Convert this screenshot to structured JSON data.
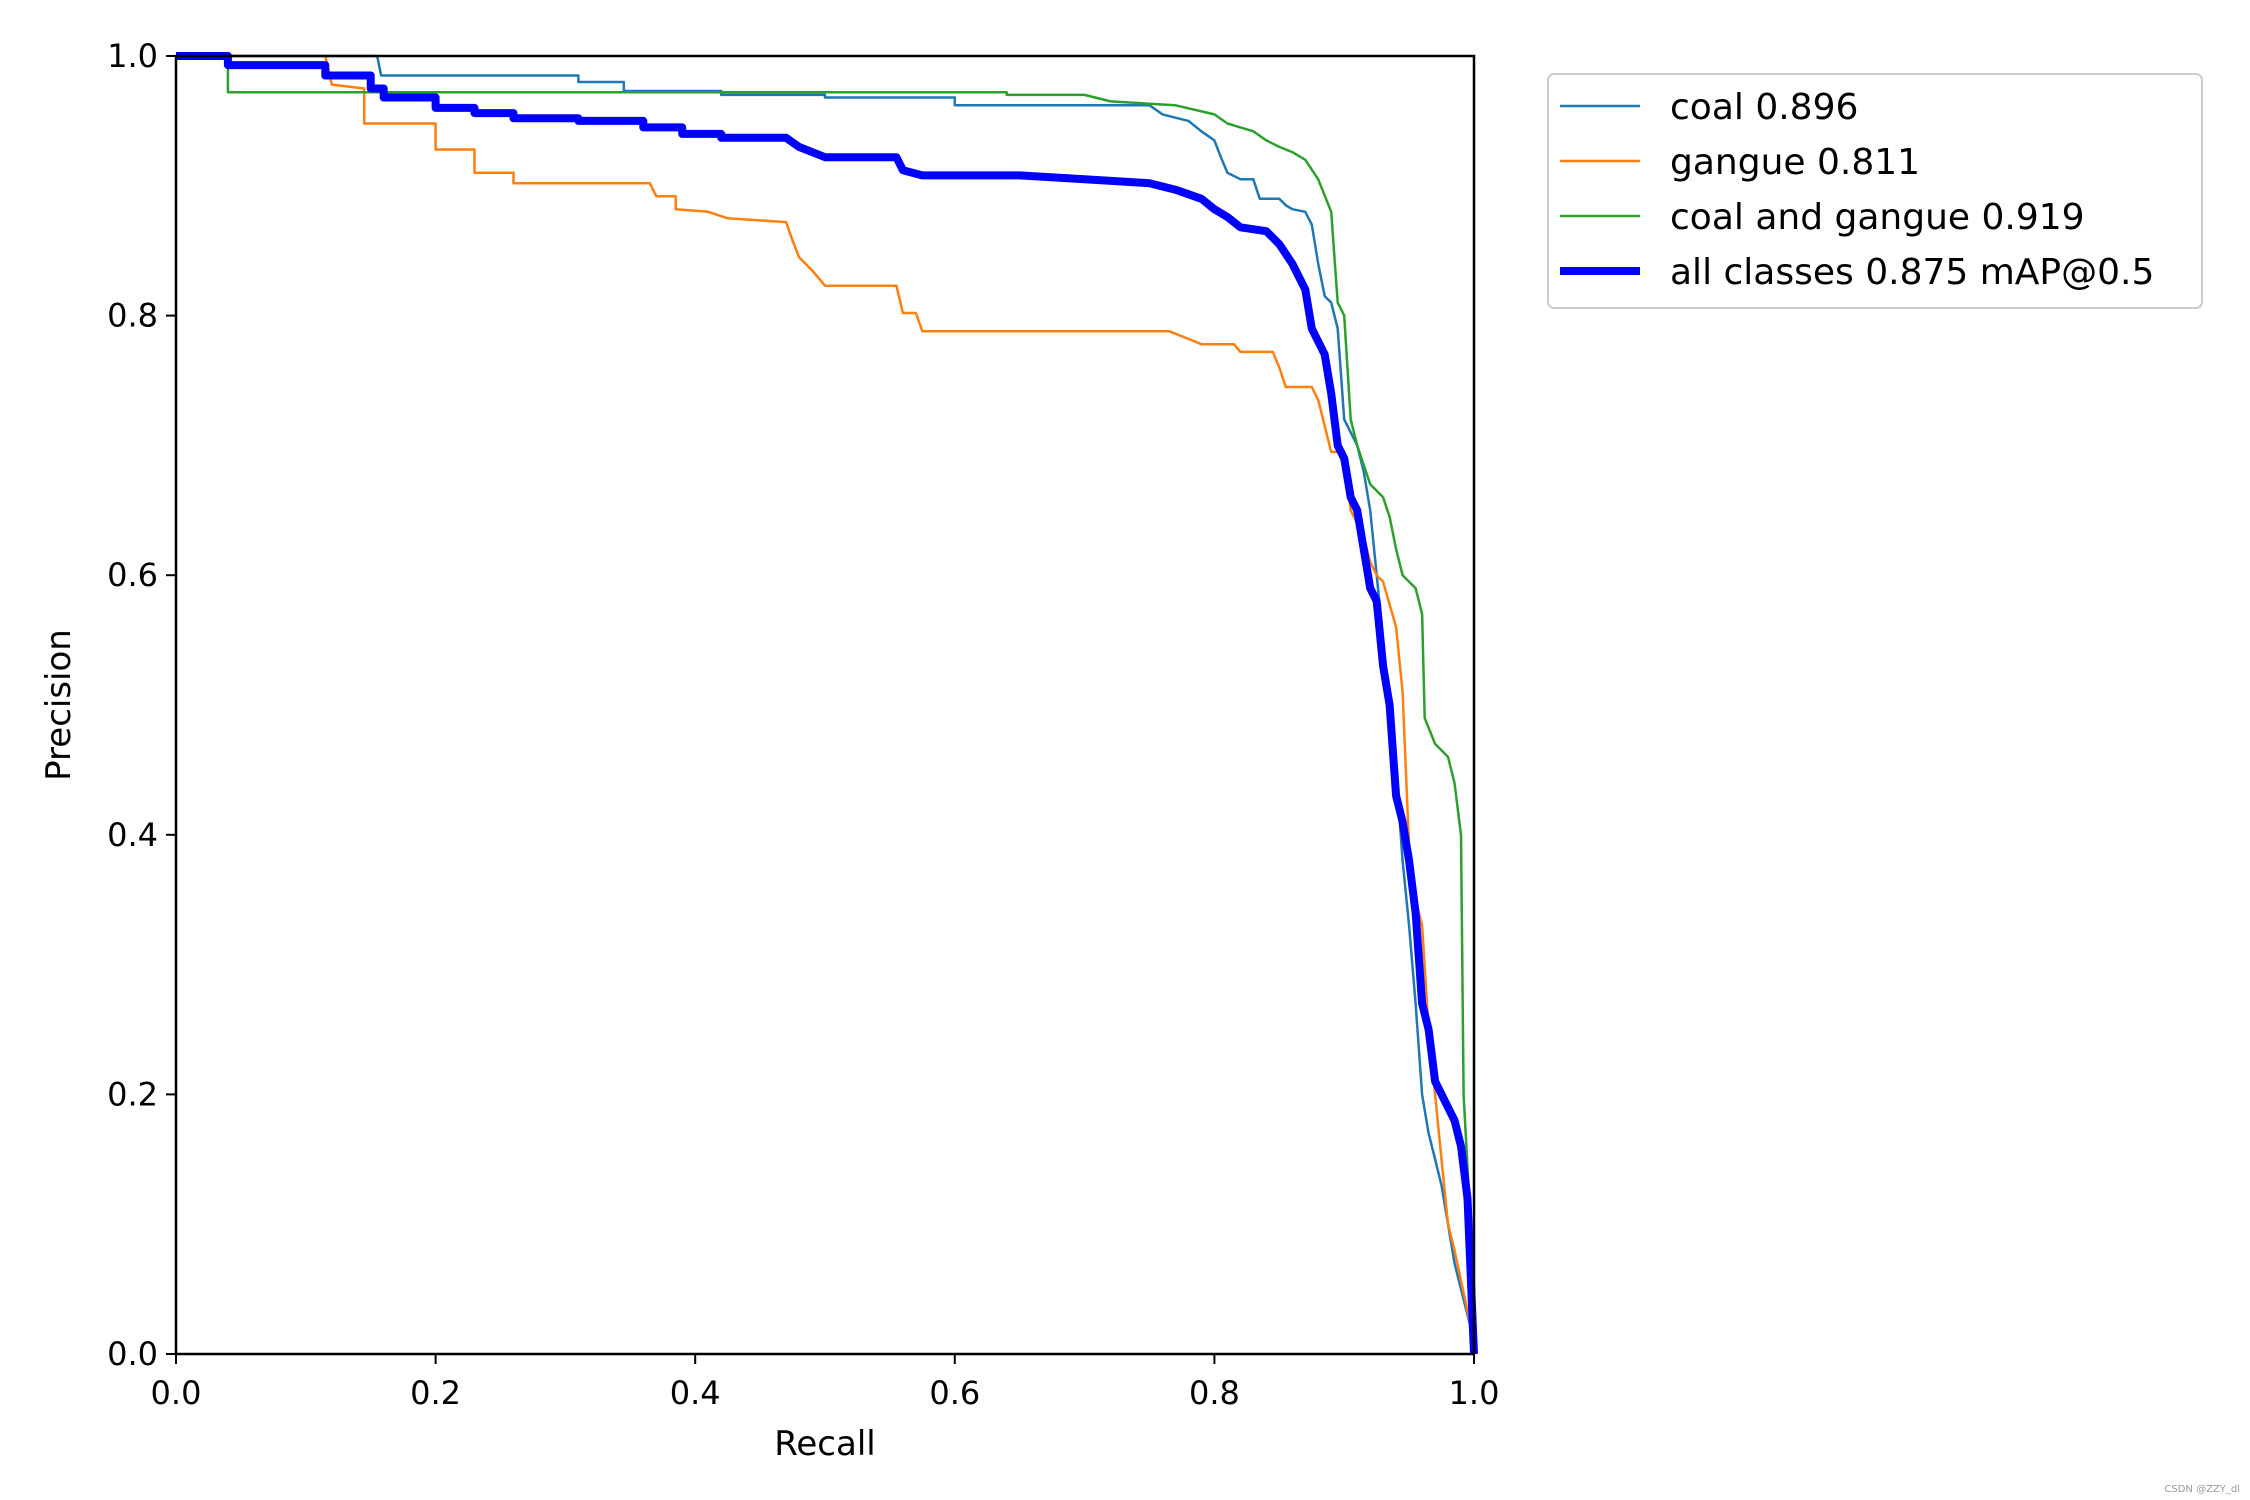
{
  "chart_data": {
    "type": "line",
    "title": "",
    "xlabel": "Recall",
    "ylabel": "Precision",
    "xlim": [
      0,
      1
    ],
    "ylim": [
      0,
      1
    ],
    "x_ticks": [
      "0.0",
      "0.2",
      "0.4",
      "0.6",
      "0.8",
      "1.0"
    ],
    "y_ticks": [
      "0.0",
      "0.2",
      "0.4",
      "0.6",
      "0.8",
      "1.0"
    ],
    "grid": false,
    "legend_position": "outside-top-right",
    "series": [
      {
        "name": "coal 0.896",
        "color": "#1f77b4",
        "width": "thin",
        "points": [
          [
            0,
            1.0
          ],
          [
            0.04,
            1.0
          ],
          [
            0.155,
            1.0
          ],
          [
            0.158,
            0.985
          ],
          [
            0.31,
            0.985
          ],
          [
            0.31,
            0.98
          ],
          [
            0.345,
            0.98
          ],
          [
            0.345,
            0.973
          ],
          [
            0.42,
            0.973
          ],
          [
            0.42,
            0.97
          ],
          [
            0.5,
            0.97
          ],
          [
            0.5,
            0.968
          ],
          [
            0.6,
            0.968
          ],
          [
            0.6,
            0.962
          ],
          [
            0.75,
            0.962
          ],
          [
            0.76,
            0.955
          ],
          [
            0.78,
            0.95
          ],
          [
            0.79,
            0.942
          ],
          [
            0.8,
            0.935
          ],
          [
            0.805,
            0.922
          ],
          [
            0.81,
            0.91
          ],
          [
            0.82,
            0.905
          ],
          [
            0.83,
            0.905
          ],
          [
            0.835,
            0.89
          ],
          [
            0.85,
            0.89
          ],
          [
            0.855,
            0.885
          ],
          [
            0.86,
            0.882
          ],
          [
            0.87,
            0.88
          ],
          [
            0.875,
            0.87
          ],
          [
            0.88,
            0.84
          ],
          [
            0.885,
            0.815
          ],
          [
            0.89,
            0.81
          ],
          [
            0.895,
            0.79
          ],
          [
            0.9,
            0.72
          ],
          [
            0.905,
            0.71
          ],
          [
            0.91,
            0.7
          ],
          [
            0.915,
            0.68
          ],
          [
            0.92,
            0.65
          ],
          [
            0.925,
            0.6
          ],
          [
            0.93,
            0.55
          ],
          [
            0.935,
            0.5
          ],
          [
            0.94,
            0.45
          ],
          [
            0.945,
            0.38
          ],
          [
            0.95,
            0.33
          ],
          [
            0.955,
            0.27
          ],
          [
            0.96,
            0.2
          ],
          [
            0.965,
            0.17
          ],
          [
            0.97,
            0.15
          ],
          [
            0.975,
            0.13
          ],
          [
            0.985,
            0.07
          ],
          [
            1.0,
            0.01
          ]
        ]
      },
      {
        "name": "gangue 0.811",
        "color": "#ff7f0e",
        "width": "thin",
        "points": [
          [
            0,
            1.0
          ],
          [
            0.115,
            1.0
          ],
          [
            0.12,
            0.978
          ],
          [
            0.145,
            0.975
          ],
          [
            0.145,
            0.948
          ],
          [
            0.2,
            0.948
          ],
          [
            0.2,
            0.928
          ],
          [
            0.23,
            0.928
          ],
          [
            0.23,
            0.91
          ],
          [
            0.26,
            0.91
          ],
          [
            0.26,
            0.902
          ],
          [
            0.365,
            0.902
          ],
          [
            0.37,
            0.892
          ],
          [
            0.385,
            0.892
          ],
          [
            0.385,
            0.882
          ],
          [
            0.41,
            0.88
          ],
          [
            0.425,
            0.875
          ],
          [
            0.47,
            0.872
          ],
          [
            0.475,
            0.858
          ],
          [
            0.48,
            0.845
          ],
          [
            0.49,
            0.835
          ],
          [
            0.5,
            0.823
          ],
          [
            0.555,
            0.823
          ],
          [
            0.56,
            0.802
          ],
          [
            0.57,
            0.802
          ],
          [
            0.575,
            0.788
          ],
          [
            0.765,
            0.788
          ],
          [
            0.775,
            0.784
          ],
          [
            0.79,
            0.778
          ],
          [
            0.815,
            0.778
          ],
          [
            0.82,
            0.772
          ],
          [
            0.845,
            0.772
          ],
          [
            0.85,
            0.76
          ],
          [
            0.855,
            0.745
          ],
          [
            0.875,
            0.745
          ],
          [
            0.88,
            0.735
          ],
          [
            0.885,
            0.715
          ],
          [
            0.89,
            0.695
          ],
          [
            0.9,
            0.695
          ],
          [
            0.905,
            0.65
          ],
          [
            0.915,
            0.63
          ],
          [
            0.92,
            0.61
          ],
          [
            0.925,
            0.6
          ],
          [
            0.93,
            0.595
          ],
          [
            0.94,
            0.56
          ],
          [
            0.945,
            0.51
          ],
          [
            0.95,
            0.39
          ],
          [
            0.955,
            0.35
          ],
          [
            0.96,
            0.33
          ],
          [
            0.965,
            0.25
          ],
          [
            0.97,
            0.2
          ],
          [
            0.975,
            0.15
          ],
          [
            0.98,
            0.1
          ],
          [
            0.985,
            0.08
          ],
          [
            1.0,
            0.01
          ]
        ]
      },
      {
        "name": "coal and gangue 0.919",
        "color": "#2ca02c",
        "width": "thin",
        "points": [
          [
            0,
            1.0
          ],
          [
            0.04,
            1.0
          ],
          [
            0.04,
            0.972
          ],
          [
            0.34,
            0.972
          ],
          [
            0.34,
            0.972
          ],
          [
            0.64,
            0.972
          ],
          [
            0.64,
            0.97
          ],
          [
            0.7,
            0.97
          ],
          [
            0.72,
            0.965
          ],
          [
            0.77,
            0.962
          ],
          [
            0.8,
            0.955
          ],
          [
            0.81,
            0.948
          ],
          [
            0.82,
            0.945
          ],
          [
            0.83,
            0.942
          ],
          [
            0.84,
            0.935
          ],
          [
            0.85,
            0.93
          ],
          [
            0.86,
            0.926
          ],
          [
            0.87,
            0.92
          ],
          [
            0.88,
            0.905
          ],
          [
            0.89,
            0.88
          ],
          [
            0.895,
            0.81
          ],
          [
            0.9,
            0.8
          ],
          [
            0.905,
            0.72
          ],
          [
            0.91,
            0.7
          ],
          [
            0.915,
            0.685
          ],
          [
            0.92,
            0.67
          ],
          [
            0.93,
            0.66
          ],
          [
            0.935,
            0.645
          ],
          [
            0.94,
            0.62
          ],
          [
            0.945,
            0.6
          ],
          [
            0.955,
            0.59
          ],
          [
            0.96,
            0.57
          ],
          [
            0.962,
            0.49
          ],
          [
            0.97,
            0.47
          ],
          [
            0.98,
            0.46
          ],
          [
            0.985,
            0.44
          ],
          [
            0.99,
            0.4
          ],
          [
            0.992,
            0.2
          ],
          [
            1.0,
            0.05
          ]
        ]
      },
      {
        "name": "all classes 0.875 mAP@0.5",
        "color": "#0000ff",
        "width": "thick",
        "points": [
          [
            0,
            1.0
          ],
          [
            0.04,
            1.0
          ],
          [
            0.04,
            0.993
          ],
          [
            0.115,
            0.993
          ],
          [
            0.115,
            0.985
          ],
          [
            0.15,
            0.985
          ],
          [
            0.15,
            0.975
          ],
          [
            0.16,
            0.975
          ],
          [
            0.16,
            0.968
          ],
          [
            0.2,
            0.968
          ],
          [
            0.2,
            0.96
          ],
          [
            0.23,
            0.96
          ],
          [
            0.23,
            0.956
          ],
          [
            0.26,
            0.956
          ],
          [
            0.26,
            0.952
          ],
          [
            0.31,
            0.952
          ],
          [
            0.31,
            0.95
          ],
          [
            0.36,
            0.95
          ],
          [
            0.36,
            0.945
          ],
          [
            0.39,
            0.945
          ],
          [
            0.39,
            0.94
          ],
          [
            0.42,
            0.94
          ],
          [
            0.42,
            0.937
          ],
          [
            0.47,
            0.937
          ],
          [
            0.48,
            0.93
          ],
          [
            0.5,
            0.922
          ],
          [
            0.555,
            0.922
          ],
          [
            0.56,
            0.912
          ],
          [
            0.575,
            0.908
          ],
          [
            0.65,
            0.908
          ],
          [
            0.7,
            0.905
          ],
          [
            0.75,
            0.902
          ],
          [
            0.77,
            0.897
          ],
          [
            0.79,
            0.89
          ],
          [
            0.8,
            0.882
          ],
          [
            0.81,
            0.876
          ],
          [
            0.82,
            0.868
          ],
          [
            0.84,
            0.865
          ],
          [
            0.85,
            0.855
          ],
          [
            0.86,
            0.84
          ],
          [
            0.87,
            0.82
          ],
          [
            0.875,
            0.79
          ],
          [
            0.885,
            0.77
          ],
          [
            0.89,
            0.74
          ],
          [
            0.895,
            0.7
          ],
          [
            0.9,
            0.69
          ],
          [
            0.905,
            0.66
          ],
          [
            0.91,
            0.65
          ],
          [
            0.915,
            0.62
          ],
          [
            0.92,
            0.59
          ],
          [
            0.925,
            0.58
          ],
          [
            0.93,
            0.53
          ],
          [
            0.935,
            0.5
          ],
          [
            0.94,
            0.43
          ],
          [
            0.945,
            0.41
          ],
          [
            0.95,
            0.38
          ],
          [
            0.955,
            0.34
          ],
          [
            0.96,
            0.27
          ],
          [
            0.965,
            0.25
          ],
          [
            0.97,
            0.21
          ],
          [
            0.98,
            0.19
          ],
          [
            0.985,
            0.18
          ],
          [
            0.99,
            0.16
          ],
          [
            0.995,
            0.12
          ],
          [
            1.0,
            0.0
          ]
        ]
      }
    ]
  },
  "watermark": "CSDN @ZZY_dl"
}
